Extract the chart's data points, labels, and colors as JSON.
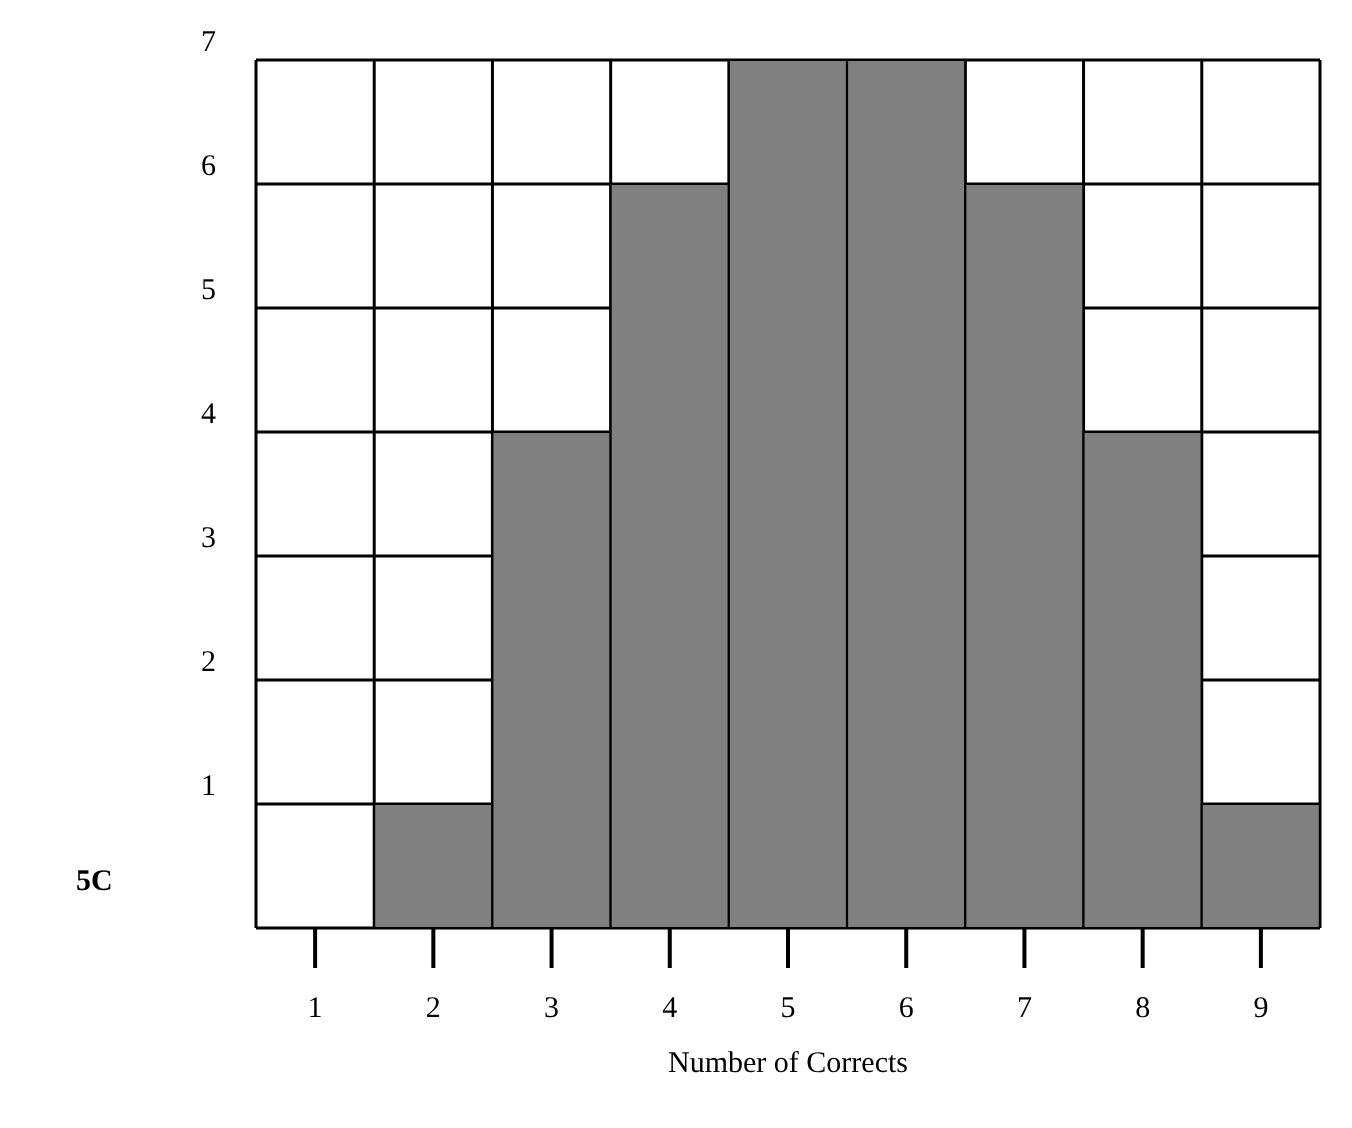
{
  "chart_data": {
    "type": "bar",
    "xlabel": "Number of Corrects",
    "categories": [
      "1",
      "2",
      "3",
      "4",
      "5",
      "6",
      "7",
      "8",
      "9"
    ],
    "values": [
      0,
      1,
      4,
      6,
      7,
      7,
      6,
      4,
      1
    ],
    "color": "#808080",
    "ylim": [
      0,
      7
    ],
    "yticks": [
      {
        "value": 0,
        "label": null
      },
      1,
      2,
      3,
      4,
      5,
      6,
      7
    ],
    "grid": true,
    "annotations": [
      "5C"
    ]
  }
}
